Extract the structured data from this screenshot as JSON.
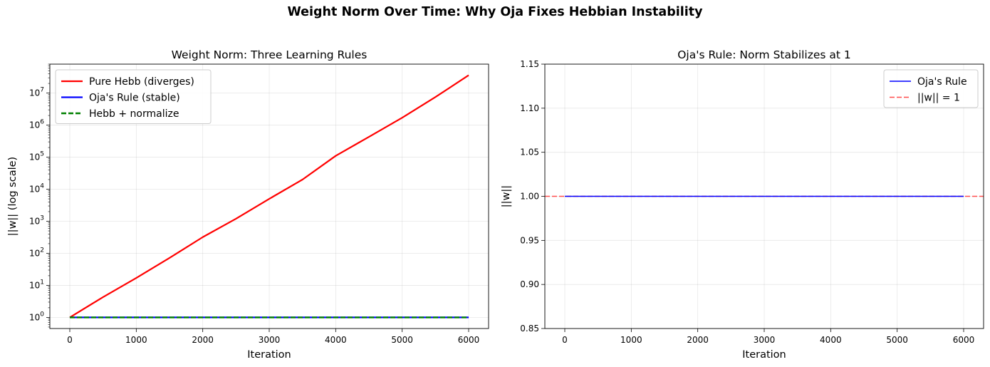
{
  "suptitle": "Weight Norm Over Time: Why Oja Fixes Hebbian Instability",
  "chart_data": [
    {
      "type": "line",
      "title": "Weight Norm: Three Learning Rules",
      "xlabel": "Iteration",
      "ylabel": "||w|| (log scale)",
      "yscale": "log",
      "xlim": [
        -300,
        6300
      ],
      "ylim": [
        0.45,
        80000000
      ],
      "xticks": [
        0,
        1000,
        2000,
        3000,
        4000,
        5000,
        6000
      ],
      "ytick_exponents": [
        0,
        1,
        2,
        3,
        4,
        5,
        6,
        7
      ],
      "grid": true,
      "legend": "top-left",
      "series": [
        {
          "name": "Pure Hebb (diverges)",
          "color": "#ff0000",
          "style": "solid",
          "x": [
            0,
            500,
            1000,
            1500,
            2000,
            2500,
            3000,
            3500,
            4000,
            4500,
            5000,
            5500,
            6000
          ],
          "y": [
            1,
            4.3,
            17,
            72,
            320,
            1200,
            5000,
            20000,
            110000,
            430000,
            1700000,
            7500000,
            36000000
          ]
        },
        {
          "name": "Oja's Rule (stable)",
          "color": "#0000ff",
          "style": "solid",
          "x": [
            0,
            6000
          ],
          "y": [
            1,
            1
          ]
        },
        {
          "name": "Hebb + normalize",
          "color": "#008000",
          "style": "dashed",
          "x": [
            0,
            6000
          ],
          "y": [
            1,
            1
          ]
        }
      ]
    },
    {
      "type": "line",
      "title": "Oja's Rule: Norm Stabilizes at 1",
      "xlabel": "Iteration",
      "ylabel": "||w||",
      "xlim": [
        -300,
        6300
      ],
      "ylim": [
        0.85,
        1.15
      ],
      "xticks": [
        0,
        1000,
        2000,
        3000,
        4000,
        5000,
        6000
      ],
      "yticks": [
        0.85,
        0.9,
        0.95,
        1.0,
        1.05,
        1.1,
        1.15
      ],
      "ytick_labels": [
        "0.85",
        "0.90",
        "0.95",
        "1.00",
        "1.05",
        "1.10",
        "1.15"
      ],
      "grid": true,
      "legend": "top-right",
      "series": [
        {
          "name": "Oja's Rule",
          "color": "#0000ff",
          "style": "solid",
          "x": [
            0,
            6000
          ],
          "y": [
            1,
            1
          ]
        }
      ],
      "reference_lines": [
        {
          "name": "||w|| = 1",
          "color": "#ff4d4d",
          "style": "dashed",
          "y": 1
        }
      ]
    }
  ]
}
